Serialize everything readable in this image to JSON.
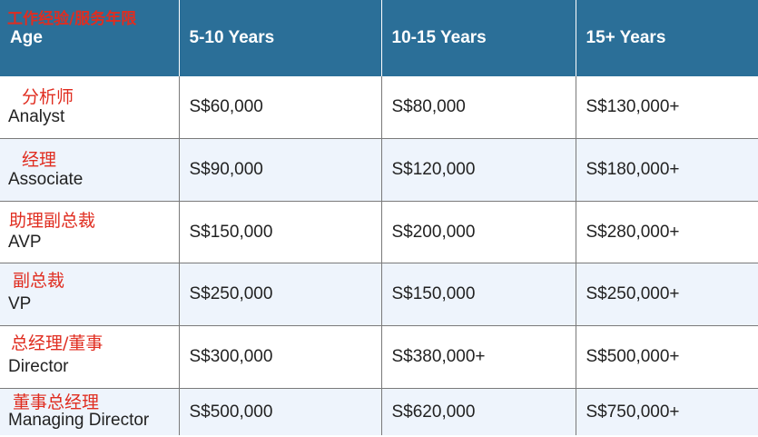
{
  "header": {
    "age_label": "Age",
    "age_label_cn": "工作经验/服务年限",
    "columns": [
      "5-10 Years",
      "10-15 Years",
      "15+ Years"
    ]
  },
  "rows": [
    {
      "role": "Analyst",
      "role_cn": "分析师",
      "values": [
        "S$60,000",
        "S$80,000",
        "S$130,000+"
      ]
    },
    {
      "role": "Associate",
      "role_cn": "经理",
      "values": [
        "S$90,000",
        "S$120,000",
        "S$180,000+"
      ]
    },
    {
      "role": "AVP",
      "role_cn": "助理副总裁",
      "values": [
        "S$150,000",
        "S$200,000",
        "S$280,000+"
      ]
    },
    {
      "role": "VP",
      "role_cn": "副总裁",
      "values": [
        "S$250,000",
        "S$150,000",
        "S$250,000+"
      ]
    },
    {
      "role": "Director",
      "role_cn": "总经理/董事",
      "values": [
        "S$300,000",
        "S$380,000+",
        "S$500,000+"
      ]
    },
    {
      "role": "Managing Director",
      "role_cn": "董事总经理",
      "values": [
        "S$500,000",
        "S$620,000",
        "S$750,000+"
      ]
    }
  ],
  "colors": {
    "header_bg": "#2b6f98",
    "annotation_red": "#e02d20",
    "alt_row_bg": "#eef4fc"
  }
}
